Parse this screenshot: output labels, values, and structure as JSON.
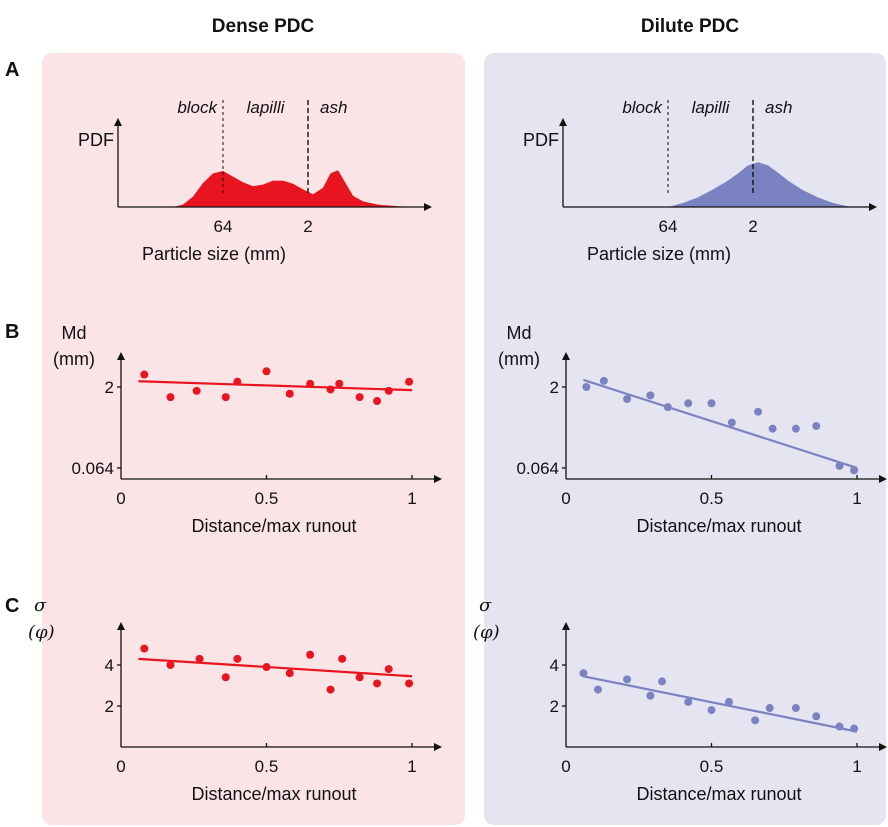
{
  "columns": [
    "Dense PDC",
    "Dilute PDC"
  ],
  "panel_letters": [
    "A",
    "B",
    "C"
  ],
  "colors": {
    "dense": "#e8141f",
    "dilute": "#7b82c1",
    "dense_bg": "#fbe4e6",
    "dilute_bg": "#e4e5f1"
  },
  "chart_data": [
    {
      "panel": "A",
      "column": "Dense PDC",
      "type": "area",
      "ylabel": "PDF",
      "xlabel": "Particle size (mm)",
      "tick_labels": [
        "64",
        "2"
      ],
      "size_classes": [
        "block",
        "lapilli",
        "ash"
      ],
      "curve": [
        [
          0.22,
          0
        ],
        [
          0.26,
          0.03
        ],
        [
          0.3,
          0.13
        ],
        [
          0.34,
          0.3
        ],
        [
          0.38,
          0.42
        ],
        [
          0.42,
          0.45
        ],
        [
          0.46,
          0.38
        ],
        [
          0.5,
          0.31
        ],
        [
          0.54,
          0.26
        ],
        [
          0.58,
          0.28
        ],
        [
          0.62,
          0.33
        ],
        [
          0.66,
          0.33
        ],
        [
          0.7,
          0.29
        ],
        [
          0.74,
          0.22
        ],
        [
          0.78,
          0.16
        ],
        [
          0.82,
          0.24
        ],
        [
          0.85,
          0.42
        ],
        [
          0.88,
          0.46
        ],
        [
          0.91,
          0.3
        ],
        [
          0.94,
          0.14
        ],
        [
          0.98,
          0.07
        ],
        [
          1.04,
          0.03
        ],
        [
          1.12,
          0.01
        ],
        [
          1.2,
          0
        ]
      ],
      "tick_positions": [
        0.42,
        0.76
      ],
      "class_boundaries": [
        0.42,
        0.76
      ]
    },
    {
      "panel": "A",
      "column": "Dilute PDC",
      "type": "area",
      "ylabel": "PDF",
      "xlabel": "Particle size (mm)",
      "tick_labels": [
        "64",
        "2"
      ],
      "size_classes": [
        "block",
        "lapilli",
        "ash"
      ],
      "curve": [
        [
          0.42,
          0
        ],
        [
          0.48,
          0.05
        ],
        [
          0.54,
          0.12
        ],
        [
          0.6,
          0.22
        ],
        [
          0.66,
          0.33
        ],
        [
          0.7,
          0.42
        ],
        [
          0.74,
          0.52
        ],
        [
          0.78,
          0.56
        ],
        [
          0.82,
          0.52
        ],
        [
          0.86,
          0.43
        ],
        [
          0.9,
          0.33
        ],
        [
          0.96,
          0.21
        ],
        [
          1.02,
          0.12
        ],
        [
          1.08,
          0.05
        ],
        [
          1.14,
          0.01
        ],
        [
          1.18,
          0
        ]
      ],
      "tick_positions": [
        0.42,
        0.76
      ],
      "class_boundaries": [
        0.42,
        0.76
      ]
    },
    {
      "panel": "B",
      "column": "Dense PDC",
      "type": "scatter",
      "ylabel_lines": [
        "Md",
        "(mm)"
      ],
      "xlabel": "Distance/max runout",
      "xticks": [
        "0",
        "0.5",
        "1"
      ],
      "yticks": [
        "2",
        "0.064"
      ],
      "y_scale": "log",
      "xlim": [
        0,
        1
      ],
      "ylim": [
        0.04,
        12
      ],
      "points": [
        [
          0.08,
          3.4
        ],
        [
          0.17,
          1.3
        ],
        [
          0.26,
          1.7
        ],
        [
          0.36,
          1.3
        ],
        [
          0.4,
          2.5
        ],
        [
          0.5,
          3.9
        ],
        [
          0.58,
          1.5
        ],
        [
          0.65,
          2.3
        ],
        [
          0.72,
          1.8
        ],
        [
          0.75,
          2.3
        ],
        [
          0.82,
          1.3
        ],
        [
          0.88,
          1.1
        ],
        [
          0.92,
          1.7
        ],
        [
          0.99,
          2.5
        ]
      ],
      "fit": [
        [
          0.06,
          2.55
        ],
        [
          1.0,
          1.75
        ]
      ]
    },
    {
      "panel": "B",
      "column": "Dilute PDC",
      "type": "scatter",
      "ylabel_lines": [
        "Md",
        "(mm)"
      ],
      "xlabel": "Distance/max runout",
      "xticks": [
        "0",
        "0.5",
        "1"
      ],
      "yticks": [
        "2",
        "0.064"
      ],
      "y_scale": "log",
      "xlim": [
        0,
        1
      ],
      "ylim": [
        0.04,
        12
      ],
      "points": [
        [
          0.07,
          2.0
        ],
        [
          0.13,
          2.6
        ],
        [
          0.21,
          1.2
        ],
        [
          0.29,
          1.4
        ],
        [
          0.35,
          0.85
        ],
        [
          0.42,
          1.0
        ],
        [
          0.5,
          1.0
        ],
        [
          0.57,
          0.44
        ],
        [
          0.66,
          0.7
        ],
        [
          0.71,
          0.34
        ],
        [
          0.79,
          0.34
        ],
        [
          0.86,
          0.38
        ],
        [
          0.94,
          0.07
        ],
        [
          0.99,
          0.058
        ]
      ],
      "fit": [
        [
          0.06,
          2.7
        ],
        [
          1.0,
          0.064
        ]
      ]
    },
    {
      "panel": "C",
      "column": "Dense PDC",
      "type": "scatter",
      "ylabel_lines": [
        "σ",
        "(φ)"
      ],
      "xlabel": "Distance/max runout",
      "xticks": [
        "0",
        "0.5",
        "1"
      ],
      "yticks": [
        "4",
        "2"
      ],
      "xlim": [
        0,
        1
      ],
      "ylim": [
        0,
        6.5
      ],
      "points": [
        [
          0.08,
          4.8
        ],
        [
          0.17,
          4.0
        ],
        [
          0.27,
          4.3
        ],
        [
          0.36,
          3.4
        ],
        [
          0.4,
          4.3
        ],
        [
          0.5,
          3.9
        ],
        [
          0.58,
          3.6
        ],
        [
          0.65,
          4.5
        ],
        [
          0.72,
          2.8
        ],
        [
          0.76,
          4.3
        ],
        [
          0.82,
          3.4
        ],
        [
          0.88,
          3.1
        ],
        [
          0.92,
          3.8
        ],
        [
          0.99,
          3.1
        ]
      ],
      "fit": [
        [
          0.06,
          4.3
        ],
        [
          1.0,
          3.45
        ]
      ]
    },
    {
      "panel": "C",
      "column": "Dilute PDC",
      "type": "scatter",
      "ylabel_lines": [
        "σ",
        "(φ)"
      ],
      "xlabel": "Distance/max runout",
      "xticks": [
        "0",
        "0.5",
        "1"
      ],
      "yticks": [
        "4",
        "2"
      ],
      "xlim": [
        0,
        1
      ],
      "ylim": [
        0,
        6.5
      ],
      "points": [
        [
          0.06,
          3.6
        ],
        [
          0.11,
          2.8
        ],
        [
          0.21,
          3.3
        ],
        [
          0.29,
          2.5
        ],
        [
          0.33,
          3.2
        ],
        [
          0.42,
          2.2
        ],
        [
          0.5,
          1.8
        ],
        [
          0.56,
          2.2
        ],
        [
          0.65,
          1.3
        ],
        [
          0.7,
          1.9
        ],
        [
          0.79,
          1.9
        ],
        [
          0.86,
          1.5
        ],
        [
          0.94,
          1.0
        ],
        [
          0.99,
          0.9
        ]
      ],
      "fit": [
        [
          0.06,
          3.45
        ],
        [
          1.0,
          0.75
        ]
      ]
    }
  ]
}
